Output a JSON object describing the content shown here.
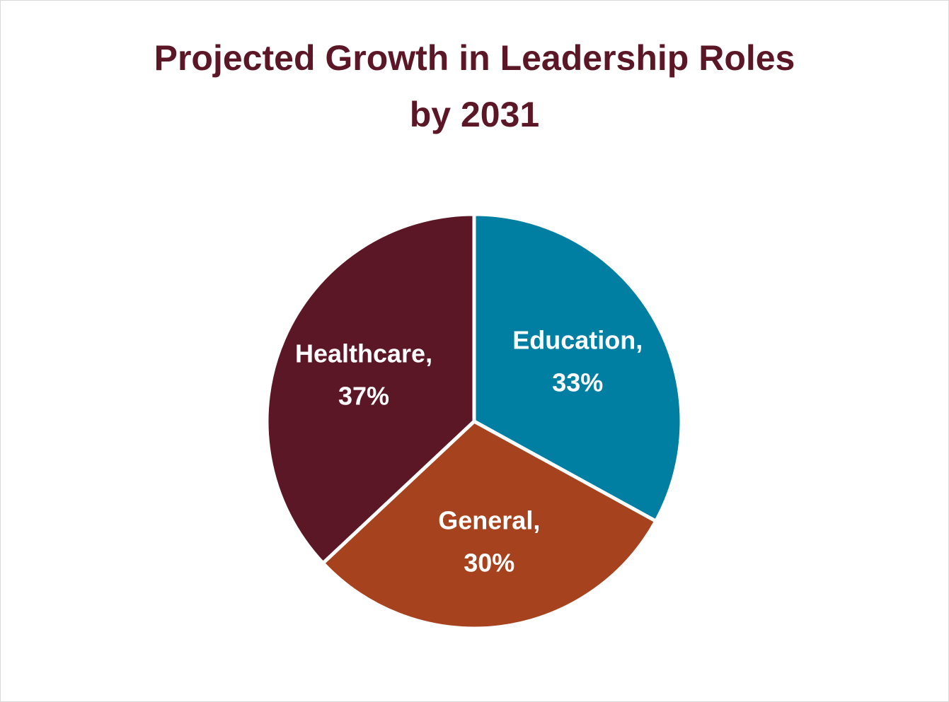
{
  "chart_data": {
    "type": "pie",
    "title": "Projected Growth in Leadership Roles by 2031",
    "title_lines": [
      "Projected Growth in Leadership Roles",
      "by 2031"
    ],
    "slices": [
      {
        "category": "Education",
        "value": 33,
        "label_line1": "Education,",
        "label_line2": "33%",
        "color": "#007fa3"
      },
      {
        "category": "General",
        "value": 30,
        "label_line1": "General,",
        "label_line2": "30%",
        "color": "#a6421e"
      },
      {
        "category": "Healthcare",
        "value": 37,
        "label_line1": "Healthcare,",
        "label_line2": "37%",
        "color": "#5b1726"
      }
    ],
    "start": "12 o'clock",
    "direction": "clockwise",
    "legend": "none",
    "data_labels": "inside"
  },
  "colors": {
    "title": "#5b1726",
    "label_text": "#ffffff",
    "slice_border": "#ffffff",
    "background": "#ffffff",
    "frame_border": "#d9d9d9"
  }
}
